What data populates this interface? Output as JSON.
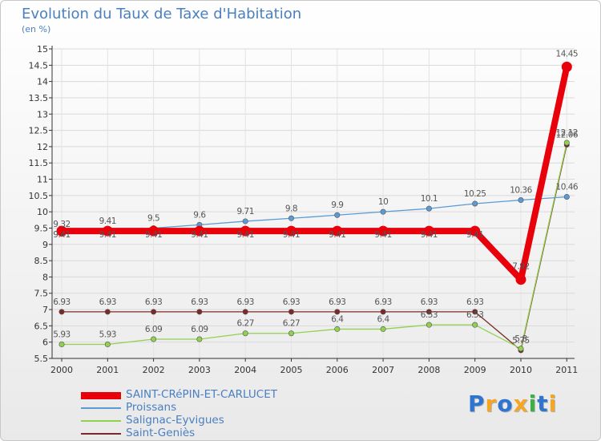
{
  "chart_data": {
    "type": "line",
    "title": "Evolution du Taux de Taxe d'Habitation",
    "ylabel": "(en %)",
    "xlabel": "",
    "x": [
      "2000",
      "2001",
      "2002",
      "2003",
      "2004",
      "2005",
      "2006",
      "2007",
      "2008",
      "2009",
      "2010",
      "2011"
    ],
    "ylim": [
      5.5,
      15
    ],
    "yticks": [
      "5.5",
      "6",
      "6.5",
      "7",
      "7.5",
      "8",
      "8.5",
      "9",
      "9.5",
      "10",
      "10.5",
      "11",
      "11.5",
      "12",
      "12.5",
      "13",
      "13.5",
      "14",
      "14.5",
      "15"
    ],
    "series": [
      {
        "name": "SAINT-CRéPIN-ET-CARLUCET",
        "color": "#e8000a",
        "values": [
          9.41,
          9.41,
          9.41,
          9.41,
          9.41,
          9.41,
          9.41,
          9.41,
          9.41,
          9.41,
          7.92,
          14.45
        ],
        "labels": [
          "9.41",
          "9.41",
          "9.41",
          "9.41",
          "9.41",
          "9.41",
          "9.41",
          "9.41",
          "9.41",
          "9.41",
          "7.92",
          "14.45"
        ]
      },
      {
        "name": "Proissans",
        "color": "#5b9bd5",
        "values": [
          9.32,
          9.41,
          9.5,
          9.6,
          9.71,
          9.8,
          9.9,
          10,
          10.1,
          10.25,
          10.36,
          10.46
        ],
        "labels": [
          "9.32",
          "9.41",
          "9.5",
          "9.6",
          "9.71",
          "9.8",
          "9.9",
          "10",
          "10.1",
          "10.25",
          "10.36",
          "10.46"
        ]
      },
      {
        "name": "Salignac-Eyvigues",
        "color": "#92d050",
        "values": [
          5.93,
          5.93,
          6.09,
          6.09,
          6.27,
          6.27,
          6.4,
          6.4,
          6.53,
          6.53,
          5.8,
          12.12
        ],
        "labels": [
          "5.93",
          "5.93",
          "6.09",
          "6.09",
          "6.27",
          "6.27",
          "6.4",
          "6.4",
          "6.53",
          "6.53",
          "5.8",
          "12.12"
        ]
      },
      {
        "name": "Saint-Geniès",
        "color": "#7b2a2a",
        "values": [
          6.93,
          6.93,
          6.93,
          6.93,
          6.93,
          6.93,
          6.93,
          6.93,
          6.93,
          6.93,
          5.75,
          12.06
        ],
        "labels": [
          "6.93",
          "6.93",
          "6.93",
          "6.93",
          "6.93",
          "6.93",
          "6.93",
          "6.93",
          "6.93",
          "6.93",
          "5.75",
          "12.06"
        ]
      }
    ]
  },
  "branding": {
    "letters": [
      {
        "char": "P",
        "color": "#2e75d1"
      },
      {
        "char": "r",
        "color": "#f5a623"
      },
      {
        "char": "o",
        "color": "#2e75d1"
      },
      {
        "char": "x",
        "color": "#f5a623"
      },
      {
        "char": "i",
        "color": "#3cb043"
      },
      {
        "char": "t",
        "color": "#2e75d1"
      },
      {
        "char": "i",
        "color": "#f5a623"
      }
    ]
  }
}
